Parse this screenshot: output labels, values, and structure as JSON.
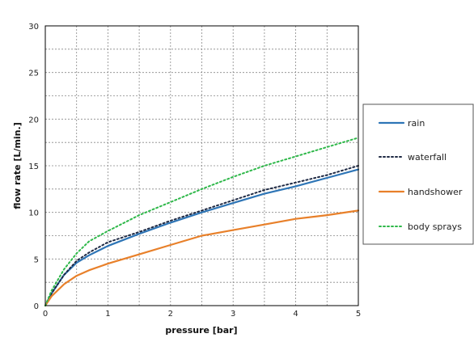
{
  "chart_data": {
    "type": "line",
    "title": "",
    "xlabel": "pressure [bar]",
    "ylabel": "flow rate [L/min.]",
    "xlim": [
      0,
      5
    ],
    "ylim": [
      0,
      30
    ],
    "x_ticks": [
      0,
      1,
      2,
      3,
      4,
      5
    ],
    "y_ticks": [
      0,
      5,
      10,
      15,
      20,
      25,
      30
    ],
    "grid": "dashed, major and minor",
    "legend_position": "right",
    "series": [
      {
        "name": "rain",
        "color": "#2e75b6",
        "style": "solid",
        "points": [
          [
            0,
            0
          ],
          [
            0.1,
            1.3
          ],
          [
            0.3,
            3.3
          ],
          [
            0.5,
            4.6
          ],
          [
            0.7,
            5.4
          ],
          [
            1.0,
            6.4
          ],
          [
            1.5,
            7.7
          ],
          [
            2.0,
            8.9
          ],
          [
            2.5,
            10.0
          ],
          [
            3.0,
            11.0
          ],
          [
            3.5,
            12.0
          ],
          [
            4.0,
            12.8
          ],
          [
            4.5,
            13.7
          ],
          [
            5.0,
            14.6
          ]
        ]
      },
      {
        "name": "waterfall",
        "color": "#1f2a44",
        "style": "dotted",
        "points": [
          [
            0,
            0
          ],
          [
            0.1,
            1.3
          ],
          [
            0.3,
            3.3
          ],
          [
            0.5,
            4.8
          ],
          [
            0.7,
            5.7
          ],
          [
            1.0,
            6.8
          ],
          [
            1.5,
            7.9
          ],
          [
            2.0,
            9.1
          ],
          [
            2.5,
            10.2
          ],
          [
            3.0,
            11.3
          ],
          [
            3.5,
            12.4
          ],
          [
            4.0,
            13.2
          ],
          [
            4.5,
            14.0
          ],
          [
            5.0,
            15.0
          ]
        ]
      },
      {
        "name": "handshower",
        "color": "#e8802a",
        "style": "solid",
        "points": [
          [
            0,
            0
          ],
          [
            0.1,
            1.0
          ],
          [
            0.3,
            2.3
          ],
          [
            0.5,
            3.2
          ],
          [
            0.7,
            3.8
          ],
          [
            1.0,
            4.5
          ],
          [
            1.5,
            5.5
          ],
          [
            2.0,
            6.5
          ],
          [
            2.5,
            7.5
          ],
          [
            3.0,
            8.1
          ],
          [
            3.5,
            8.7
          ],
          [
            4.0,
            9.3
          ],
          [
            4.5,
            9.7
          ],
          [
            5.0,
            10.2
          ]
        ]
      },
      {
        "name": "body sprays",
        "color": "#2fb84a",
        "style": "dotted",
        "points": [
          [
            0,
            0
          ],
          [
            0.1,
            1.6
          ],
          [
            0.3,
            3.9
          ],
          [
            0.5,
            5.6
          ],
          [
            0.7,
            6.9
          ],
          [
            1.0,
            8.0
          ],
          [
            1.5,
            9.7
          ],
          [
            2.0,
            11.1
          ],
          [
            2.5,
            12.5
          ],
          [
            3.0,
            13.8
          ],
          [
            3.5,
            15.0
          ],
          [
            4.0,
            16.0
          ],
          [
            4.5,
            17.0
          ],
          [
            5.0,
            18.0
          ]
        ]
      }
    ]
  }
}
